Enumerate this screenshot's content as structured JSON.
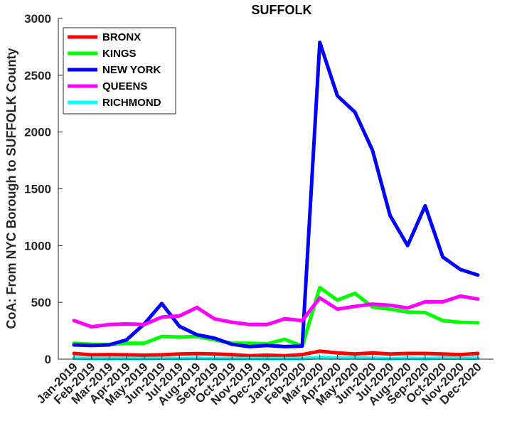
{
  "chart_data": {
    "type": "line",
    "title": "SUFFOLK",
    "xlabel": "",
    "ylabel": "CoA: From NYC Borough to SUFFOLK County",
    "ylim": [
      0,
      3000
    ],
    "yticks": [
      0,
      500,
      1000,
      1500,
      2000,
      2500,
      3000
    ],
    "grid": false,
    "legend_position": "top-left",
    "categories": [
      "Jan-2019",
      "Feb-2019",
      "Mar-2019",
      "Apr-2019",
      "May-2019",
      "Jun-2019",
      "Jul-2019",
      "Aug-2019",
      "Sep-2019",
      "Oct-2019",
      "Nov-2019",
      "Dec-2019",
      "Jan-2020",
      "Feb-2020",
      "Mar-2020",
      "Apr-2020",
      "May-2020",
      "Jun-2020",
      "Jul-2020",
      "Aug-2020",
      "Sep-2020",
      "Oct-2020",
      "Nov-2020",
      "Dec-2020"
    ],
    "series": [
      {
        "name": "BRONX",
        "color": "#ff0000",
        "values": [
          50,
          38,
          40,
          38,
          35,
          38,
          45,
          48,
          45,
          40,
          30,
          35,
          30,
          40,
          70,
          55,
          45,
          55,
          45,
          50,
          50,
          45,
          40,
          50
        ]
      },
      {
        "name": "KINGS",
        "color": "#00ff00",
        "values": [
          140,
          130,
          130,
          140,
          140,
          200,
          195,
          200,
          170,
          140,
          140,
          135,
          175,
          115,
          630,
          520,
          580,
          460,
          440,
          415,
          410,
          340,
          325,
          320
        ]
      },
      {
        "name": "NEW YORK",
        "color": "#0000ff",
        "values": [
          125,
          120,
          125,
          170,
          310,
          490,
          290,
          215,
          185,
          130,
          110,
          120,
          110,
          115,
          2790,
          2320,
          2175,
          1840,
          1265,
          1000,
          1350,
          900,
          790,
          740
        ]
      },
      {
        "name": "QUEENS",
        "color": "#ff00ff",
        "values": [
          340,
          285,
          305,
          310,
          305,
          370,
          380,
          455,
          355,
          325,
          305,
          305,
          355,
          340,
          540,
          440,
          465,
          485,
          475,
          450,
          505,
          505,
          555,
          530
        ]
      },
      {
        "name": "RICHMOND",
        "color": "#00ffff",
        "values": [
          8,
          5,
          5,
          5,
          5,
          8,
          5,
          8,
          5,
          5,
          5,
          5,
          5,
          5,
          15,
          10,
          12,
          8,
          5,
          8,
          5,
          10,
          8,
          8
        ]
      }
    ]
  }
}
